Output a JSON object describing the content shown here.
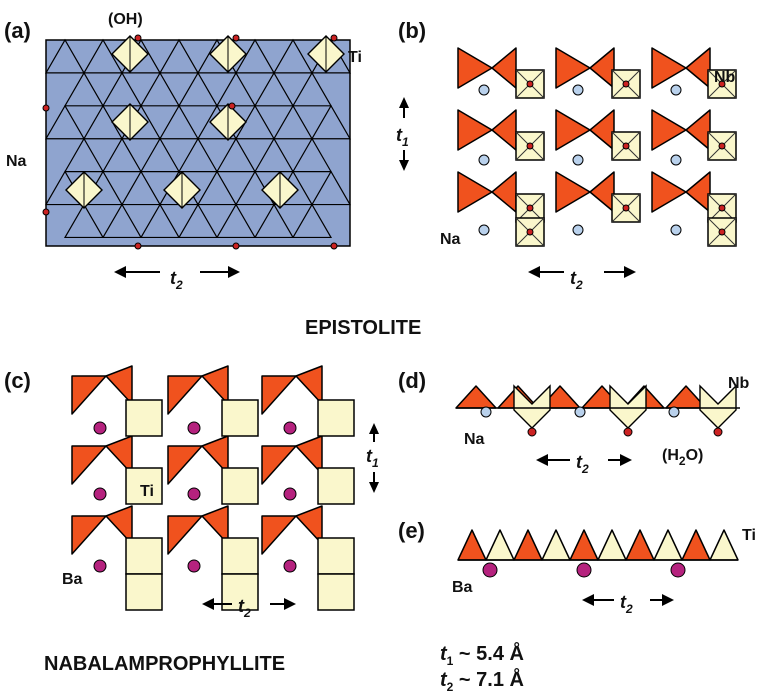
{
  "colors": {
    "octahedron_fill": "#8fa4cf",
    "octahedron_stroke": "#000000",
    "polyhedron_cream": "#faf7cc",
    "triangle_orange": "#f0521e",
    "na_site": "#b9d1ec",
    "oh_site": "#cc2222",
    "ba_site": "#b5227e"
  },
  "panels": {
    "a": {
      "label": "(a)",
      "sites": [
        "(OH)",
        "Ti",
        "Na"
      ]
    },
    "b": {
      "label": "(b)",
      "sites": [
        "Nb",
        "Na"
      ]
    },
    "c": {
      "label": "(c)",
      "sites": [
        "Ti",
        "Ba"
      ]
    },
    "d": {
      "label": "(d)",
      "sites": [
        "Nb",
        "Na"
      ],
      "h2o_pre": "(H",
      "h2o_sub": "2",
      "h2o_post": "O)"
    },
    "e": {
      "label": "(e)",
      "sites": [
        "Ti",
        "Ba"
      ]
    }
  },
  "axes": {
    "t": "t",
    "one": "1",
    "two": "2"
  },
  "titles": {
    "epistolite": "EPISTOLITE",
    "nabalamprophyllite": "NABALAMPROPHYLLITE"
  },
  "legend": {
    "t1_value": " ~ 5.4 Å",
    "t2_value": " ~ 7.1 Å"
  }
}
